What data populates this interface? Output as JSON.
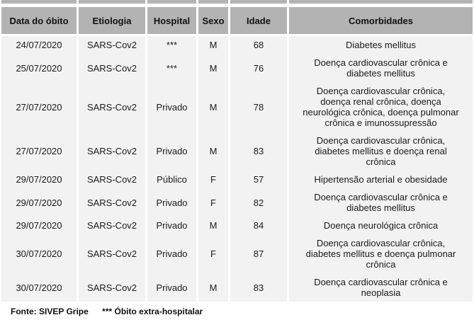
{
  "colors": {
    "header_bg": "#b3b3b3",
    "row_bg": "#f2f2f2",
    "text": "#1a1a1a"
  },
  "table": {
    "headers": [
      "Data do óbito",
      "Etiologia",
      "Hospital",
      "Sexo",
      "Idade",
      "Comorbidades"
    ],
    "rows": [
      [
        "24/07/2020",
        "SARS-Cov2",
        "***",
        "M",
        "68",
        "Diabetes mellitus"
      ],
      [
        "25/07/2020",
        "SARS-Cov2",
        "***",
        "M",
        "76",
        "Doença cardiovascular crônica e\ndiabetes mellitus"
      ],
      [
        "27/07/2020",
        "SARS-Cov2",
        "Privado",
        "M",
        "78",
        "Doença cardiovascular crônica,\ndoença renal crônica, doença\nneurológica crônica, doença pulmonar\ncrônica e imunossupressão"
      ],
      [
        "27/07/2020",
        "SARS-Cov2",
        "Privado",
        "M",
        "83",
        "Doença cardiovascular crônica,\ndiabetes mellitus e doença renal\ncrônica"
      ],
      [
        "29/07/2020",
        "SARS-Cov2",
        "Público",
        "F",
        "57",
        "Hipertensão arterial e obesidade"
      ],
      [
        "29/07/2020",
        "SARS-Cov2",
        "Privado",
        "F",
        "82",
        "Doença cardiovascular crônica e\ndiabetes mellitus"
      ],
      [
        "29/07/2020",
        "SARS-Cov2",
        "Privado",
        "M",
        "84",
        "Doença neurológica crônica"
      ],
      [
        "30/07/2020",
        "SARS-Cov2",
        "Privado",
        "F",
        "87",
        "Doença cardiovascular crônica,\ndiabetes mellitus e doença pulmonar\ncrônica"
      ],
      [
        "30/07/2020",
        "SARS-Cov2",
        "Privado",
        "M",
        "83",
        "Doença cardiovascular crônica e\nneoplasia"
      ]
    ]
  },
  "footer": {
    "source": "Fonte: SIVEP Gripe",
    "note": "*** Óbito extra-hospitalar"
  }
}
